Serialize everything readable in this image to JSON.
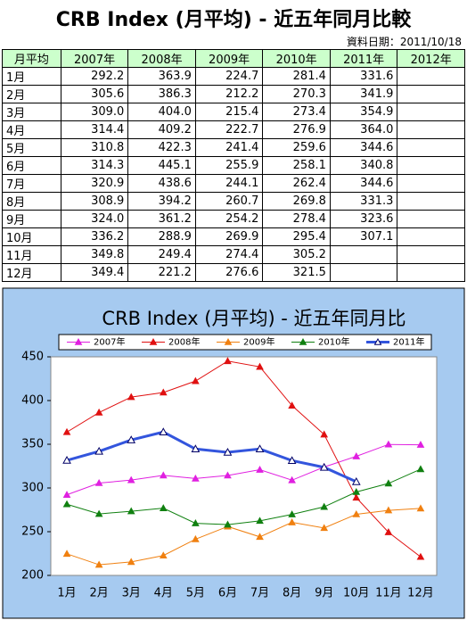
{
  "table": {
    "title": "CRB Index (月平均) - 近五年同月比較",
    "date": "資料日期：2011/10/18",
    "header": [
      "月平均",
      "2007年",
      "2008年",
      "2009年",
      "2010年",
      "2011年",
      "2012年"
    ],
    "rows": [
      [
        "1月",
        "292.2",
        "363.9",
        "224.7",
        "281.4",
        "331.6"
      ],
      [
        "2月",
        "305.6",
        "386.3",
        "212.2",
        "270.3",
        "341.9"
      ],
      [
        "3月",
        "309.0",
        "404.0",
        "215.4",
        "273.4",
        "354.9"
      ],
      [
        "4月",
        "314.4",
        "409.2",
        "222.7",
        "276.9",
        "364.0"
      ],
      [
        "5月",
        "310.8",
        "422.3",
        "241.4",
        "259.6",
        "344.6"
      ],
      [
        "6月",
        "314.3",
        "445.1",
        "255.9",
        "258.1",
        "340.8"
      ],
      [
        "7月",
        "320.9",
        "438.6",
        "244.1",
        "262.4",
        "344.6"
      ],
      [
        "8月",
        "308.9",
        "394.2",
        "260.7",
        "269.8",
        "331.3"
      ],
      [
        "9月",
        "324.0",
        "361.2",
        "254.2",
        "278.4",
        "323.6"
      ],
      [
        "10月",
        "336.2",
        "288.9",
        "269.9",
        "295.4",
        "307.1"
      ],
      [
        "11月",
        "349.8",
        "249.4",
        "274.4",
        "305.2"
      ],
      [
        "12月",
        "349.4",
        "221.2",
        "276.6",
        "321.5"
      ]
    ]
  },
  "chart_data": {
    "type": "line",
    "title": "CRB Index (月平均) - 近五年同月比",
    "categories": [
      "1月",
      "2月",
      "3月",
      "4月",
      "5月",
      "6月",
      "7月",
      "8月",
      "9月",
      "10月",
      "11月",
      "12月"
    ],
    "ylim": [
      200,
      450
    ],
    "yticks": [
      200,
      250,
      300,
      350,
      400,
      450
    ],
    "grid": false,
    "legend": "top",
    "series": [
      {
        "name": "2007年",
        "color": "#e020e0",
        "values": [
          292.2,
          305.6,
          309.0,
          314.4,
          310.8,
          314.3,
          320.9,
          308.9,
          324.0,
          336.2,
          349.8,
          349.4
        ]
      },
      {
        "name": "2008年",
        "color": "#e01010",
        "values": [
          363.9,
          386.3,
          404.0,
          409.2,
          422.3,
          445.1,
          438.6,
          394.2,
          361.2,
          288.9,
          249.4,
          221.2
        ]
      },
      {
        "name": "2009年",
        "color": "#f08010",
        "values": [
          224.7,
          212.2,
          215.4,
          222.7,
          241.4,
          255.9,
          244.1,
          260.7,
          254.2,
          269.9,
          274.4,
          276.6
        ]
      },
      {
        "name": "2010年",
        "color": "#108010",
        "values": [
          281.4,
          270.3,
          273.4,
          276.9,
          259.6,
          258.1,
          262.4,
          269.8,
          278.4,
          295.4,
          305.2,
          321.5
        ]
      },
      {
        "name": "2011年",
        "color": "#3355dd",
        "values": [
          331.6,
          341.9,
          354.9,
          364.0,
          344.6,
          340.8,
          344.6,
          331.3,
          323.6,
          307.1,
          null,
          null
        ]
      }
    ]
  }
}
